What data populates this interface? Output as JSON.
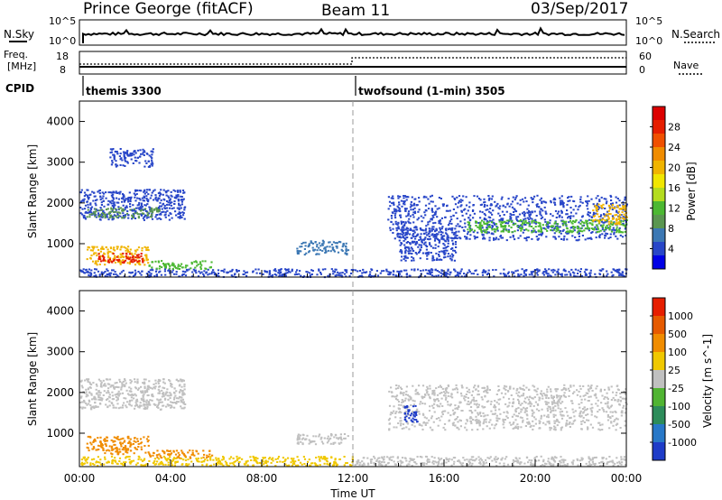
{
  "header": {
    "station": "Prince George (fitACF)",
    "beam": "Beam 11",
    "date": "03/Sep/2017"
  },
  "noise_panel": {
    "left_label": "N.Sky",
    "right_label": "N.Search",
    "tick_top_left": "10^5",
    "tick_bot_left": "10^0",
    "tick_top_right": "10^5",
    "tick_bot_right": "10^0"
  },
  "freq_panel": {
    "left_label_1": "Freq.",
    "left_label_2": "[MHz]",
    "right_label": "Nave",
    "tick_top_left": "18",
    "tick_bot_left": "8",
    "tick_top_right": "60",
    "tick_bot_right": "0"
  },
  "cpid_panel": {
    "label": "CPID",
    "modes": [
      {
        "name": "themis 3300",
        "start_hour": 0
      },
      {
        "name": "twofsound (1-min) 3505",
        "start_hour": 12
      }
    ]
  },
  "x_axis": {
    "title": "Time UT",
    "ticks": [
      "00:00",
      "04:00",
      "08:00",
      "12:00",
      "16:00",
      "20:00",
      "00:00"
    ]
  },
  "colors": {
    "background": "#ffffff",
    "ground_scatter": "#c0c0c0",
    "scatter_blue": "#2b3fb0"
  },
  "chart_data": [
    {
      "type": "heatmap",
      "title": "",
      "ylabel": "Slant Range [km]",
      "xlim_hours": [
        0,
        24
      ],
      "ylim": [
        180,
        4500
      ],
      "yticks": [
        "1000",
        "2000",
        "3000",
        "4000"
      ],
      "colorbar": {
        "label": "Power [dB]",
        "ticks": [
          "4",
          "8",
          "12",
          "16",
          "20",
          "24",
          "28"
        ],
        "colors": [
          "#0000e6",
          "#2846c8",
          "#3c78b4",
          "#5a9650",
          "#4cb832",
          "#b4dc1e",
          "#f0e600",
          "#f0b400",
          "#f08c00",
          "#f05000",
          "#e61e00",
          "#dc0000"
        ]
      },
      "bands": [
        {
          "t0": 0.0,
          "t1": 4.6,
          "r0": 1600,
          "r1": 2350,
          "color": "#2846c8"
        },
        {
          "t0": 0.3,
          "t1": 3.5,
          "r0": 1650,
          "r1": 1900,
          "color": "#5a9650"
        },
        {
          "t0": 0.3,
          "t1": 3.0,
          "r0": 500,
          "r1": 950,
          "color": "#f0b400"
        },
        {
          "t0": 0.8,
          "t1": 2.8,
          "r0": 550,
          "r1": 800,
          "color": "#e61e00"
        },
        {
          "t0": 0.0,
          "t1": 24.0,
          "r0": 200,
          "r1": 400,
          "color": "#2846c8"
        },
        {
          "t0": 3.0,
          "t1": 5.8,
          "r0": 400,
          "r1": 600,
          "color": "#4cb832"
        },
        {
          "t0": 9.5,
          "t1": 11.8,
          "r0": 750,
          "r1": 1100,
          "color": "#3c78b4"
        },
        {
          "t0": 13.5,
          "t1": 24.0,
          "r0": 1100,
          "r1": 2200,
          "color": "#2846c8"
        },
        {
          "t0": 17.0,
          "t1": 24.0,
          "r0": 1300,
          "r1": 1600,
          "color": "#4cb832"
        },
        {
          "t0": 22.5,
          "t1": 24.0,
          "r0": 1500,
          "r1": 2000,
          "color": "#f0b400"
        },
        {
          "t0": 1.3,
          "t1": 3.2,
          "r0": 2900,
          "r1": 3350,
          "color": "#2846c8"
        },
        {
          "t0": 14.0,
          "t1": 16.5,
          "r0": 600,
          "r1": 1400,
          "color": "#2846c8"
        }
      ]
    },
    {
      "type": "heatmap",
      "title": "",
      "ylabel": "Slant Range [km]",
      "xlim_hours": [
        0,
        24
      ],
      "ylim": [
        180,
        4500
      ],
      "yticks": [
        "1000",
        "2000",
        "3000",
        "4000"
      ],
      "colorbar": {
        "label": "Velocity [m s^-1]",
        "ticks": [
          "1000",
          "500",
          "100",
          "25",
          "-25",
          "-100",
          "-500",
          "-1000"
        ],
        "colors": [
          "#1e3cc8",
          "#2878c8",
          "#2d8c5a",
          "#50b432",
          "#c0c0c0",
          "#f0c800",
          "#f08c00",
          "#e65a00",
          "#e61e00"
        ]
      },
      "bands": [
        {
          "t0": 0.0,
          "t1": 4.6,
          "r0": 1600,
          "r1": 2350,
          "color": "#c0c0c0"
        },
        {
          "t0": 0.3,
          "t1": 3.0,
          "r0": 500,
          "r1": 950,
          "color": "#f08c00"
        },
        {
          "t0": 0.0,
          "t1": 12.0,
          "r0": 220,
          "r1": 450,
          "color": "#f0c800"
        },
        {
          "t0": 3.0,
          "t1": 5.8,
          "r0": 400,
          "r1": 600,
          "color": "#f08c00"
        },
        {
          "t0": 9.5,
          "t1": 11.8,
          "r0": 750,
          "r1": 1000,
          "color": "#c0c0c0"
        },
        {
          "t0": 13.5,
          "t1": 24.0,
          "r0": 1100,
          "r1": 2200,
          "color": "#c0c0c0"
        },
        {
          "t0": 14.2,
          "t1": 14.8,
          "r0": 1300,
          "r1": 1700,
          "color": "#1e3cc8"
        },
        {
          "t0": 12.0,
          "t1": 24.0,
          "r0": 220,
          "r1": 450,
          "color": "#c0c0c0"
        }
      ]
    }
  ]
}
